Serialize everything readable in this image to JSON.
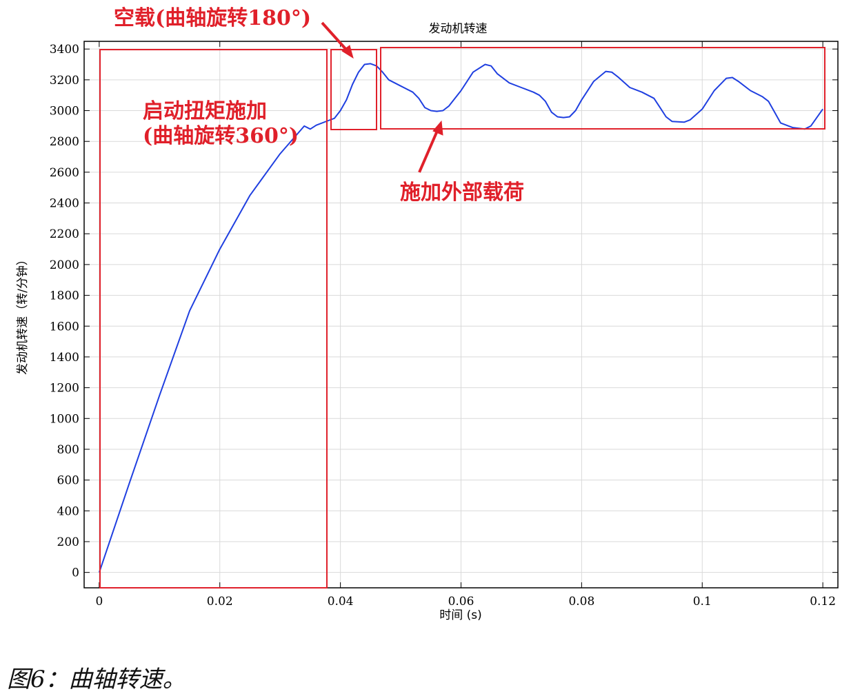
{
  "caption": "图6：曲轴转速。",
  "chart_data": {
    "type": "line",
    "title": "发动机转速",
    "xlabel": "时间 (s)",
    "ylabel": "发动机转速（转/分钟）",
    "xlim": [
      -0.0025,
      0.1225
    ],
    "ylim": [
      -100,
      3450
    ],
    "x_ticks": [
      0,
      0.02,
      0.04,
      0.06,
      0.08,
      0.1,
      0.12
    ],
    "x_tick_labels": [
      "0",
      "0.02",
      "0.04",
      "0.06",
      "0.08",
      "0.1",
      "0.12"
    ],
    "y_ticks": [
      0,
      200,
      400,
      600,
      800,
      1000,
      1200,
      1400,
      1600,
      1800,
      2000,
      2200,
      2400,
      2600,
      2800,
      3000,
      3200,
      3400
    ],
    "grid": true,
    "line_color": "#1f3fe0",
    "series": [
      {
        "name": "",
        "x": [
          0,
          0.005,
          0.01,
          0.015,
          0.02,
          0.025,
          0.03,
          0.034,
          0.035,
          0.036,
          0.038,
          0.039,
          0.04,
          0.041,
          0.042,
          0.043,
          0.044,
          0.045,
          0.046,
          0.047,
          0.048,
          0.05,
          0.052,
          0.053,
          0.054,
          0.055,
          0.056,
          0.057,
          0.058,
          0.06,
          0.062,
          0.064,
          0.065,
          0.066,
          0.068,
          0.07,
          0.072,
          0.073,
          0.074,
          0.075,
          0.076,
          0.077,
          0.078,
          0.079,
          0.08,
          0.082,
          0.084,
          0.085,
          0.086,
          0.088,
          0.09,
          0.092,
          0.093,
          0.094,
          0.095,
          0.097,
          0.098,
          0.1,
          0.102,
          0.104,
          0.105,
          0.106,
          0.108,
          0.11,
          0.111,
          0.112,
          0.113,
          0.115,
          0.117,
          0.118,
          0.12
        ],
        "y": [
          0,
          580,
          1150,
          1700,
          2100,
          2450,
          2720,
          2900,
          2880,
          2905,
          2935,
          2950,
          3000,
          3070,
          3170,
          3250,
          3300,
          3305,
          3290,
          3250,
          3200,
          3160,
          3120,
          3080,
          3020,
          3000,
          2995,
          3000,
          3030,
          3130,
          3250,
          3300,
          3290,
          3240,
          3180,
          3150,
          3120,
          3100,
          3060,
          2990,
          2960,
          2955,
          2960,
          3000,
          3070,
          3190,
          3255,
          3250,
          3220,
          3150,
          3120,
          3080,
          3020,
          2960,
          2930,
          2925,
          2940,
          3010,
          3130,
          3210,
          3215,
          3190,
          3130,
          3090,
          3060,
          2990,
          2920,
          2890,
          2880,
          2900,
          3010
        ]
      }
    ],
    "annotations": [
      {
        "id": "idle",
        "text": "空载(曲轴旋转180°)"
      },
      {
        "id": "start",
        "text_line1": "启动扭矩施加",
        "text_line2": "(曲轴旋转360°)"
      },
      {
        "id": "load",
        "text": "施加外部载荷"
      }
    ],
    "annotation_color": "#e0202a"
  }
}
